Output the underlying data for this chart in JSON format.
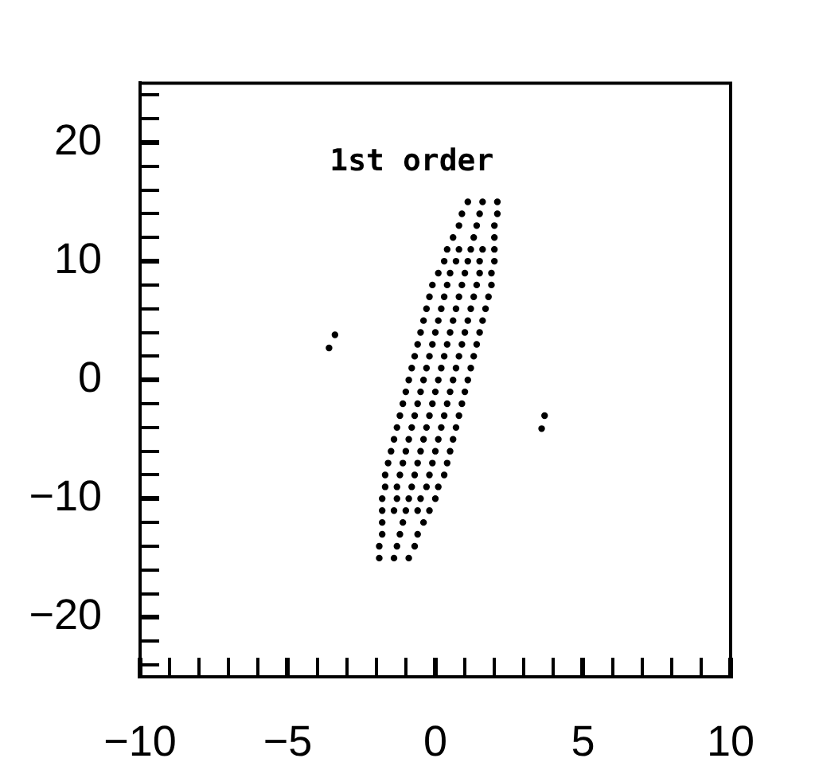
{
  "chart_data": {
    "type": "scatter",
    "annotations": [
      "1st order"
    ],
    "x": [
      1.1,
      1.6,
      2.1,
      0.9,
      1.5,
      2.1,
      0.8,
      1.4,
      2.0,
      0.6,
      1.3,
      2.0,
      0.4,
      0.8,
      1.2,
      1.6,
      2.0,
      0.3,
      0.7,
      1.1,
      1.5,
      2.0,
      0.1,
      0.5,
      1.0,
      1.5,
      1.9,
      -0.1,
      0.4,
      0.9,
      1.4,
      1.9,
      -0.2,
      0.3,
      0.8,
      1.3,
      1.8,
      -0.3,
      0.2,
      0.7,
      1.2,
      1.7,
      -0.4,
      0.1,
      0.6,
      1.1,
      1.6,
      -0.5,
      0,
      0.5,
      1,
      1.5,
      -0.6,
      -0.1,
      0.4,
      0.9,
      1.4,
      -0.7,
      -0.2,
      0.3,
      0.8,
      1.3,
      -0.8,
      -0.3,
      0.2,
      0.7,
      1.2,
      -0.9,
      -0.4,
      0.1,
      0.6,
      1.1,
      -1,
      -0.5,
      0,
      0.5,
      1,
      -1.1,
      -0.6,
      -0.1,
      0.4,
      0.9,
      -1.2,
      -0.7,
      -0.2,
      0.3,
      0.8,
      -1.3,
      -0.8,
      -0.3,
      0.2,
      0.7,
      -1.4,
      -0.9,
      -0.4,
      0.1,
      0.6,
      -1.5,
      -1,
      -0.5,
      0,
      0.5,
      -1.6,
      -1.1,
      -0.6,
      -0.1,
      0.4,
      -1.7,
      -1.2,
      -0.7,
      -0.2,
      0.3,
      -1.7,
      -1.3,
      -0.8,
      -0.3,
      0.1,
      -1.8,
      -1.3,
      -0.9,
      -0.5,
      0.0,
      -1.8,
      -1.4,
      -1.0,
      -0.6,
      -0.2,
      -1.8,
      -1.1,
      -0.4,
      -1.8,
      -1.2,
      -0.6,
      -1.9,
      -1.3,
      -0.7,
      -1.9,
      -1.4,
      -0.9,
      -3.4,
      -3.6,
      3.7,
      3.6
    ],
    "values": [
      15,
      15,
      15,
      14,
      14,
      14,
      13,
      13,
      13,
      12,
      12,
      12,
      11,
      11,
      11,
      11,
      11,
      10,
      10,
      10,
      10,
      10,
      9,
      9,
      9,
      9,
      9,
      8,
      8,
      8,
      8,
      8,
      7,
      7,
      7,
      7,
      7,
      6,
      6,
      6,
      6,
      6,
      5,
      5,
      5,
      5,
      5,
      4,
      4,
      4,
      4,
      4,
      3,
      3,
      3,
      3,
      3,
      2,
      2,
      2,
      2,
      2,
      1,
      1,
      1,
      1,
      1,
      0,
      0,
      0,
      0,
      0,
      -1,
      -1,
      -1,
      -1,
      -1,
      -2,
      -2,
      -2,
      -2,
      -2,
      -3,
      -3,
      -3,
      -3,
      -3,
      -4,
      -4,
      -4,
      -4,
      -4,
      -5,
      -5,
      -5,
      -5,
      -5,
      -6,
      -6,
      -6,
      -6,
      -6,
      -7,
      -7,
      -7,
      -7,
      -7,
      -8,
      -8,
      -8,
      -8,
      -8,
      -9,
      -9,
      -9,
      -9,
      -9,
      -10,
      -10,
      -10,
      -10,
      -10,
      -11,
      -11,
      -11,
      -11,
      -11,
      -12,
      -12,
      -12,
      -13,
      -13,
      -13,
      -14,
      -14,
      -14,
      -15,
      -15,
      -15,
      3.8,
      2.7,
      -3.0,
      -4.1
    ],
    "color": "#000000",
    "marker": "circle",
    "xlim": [
      -10,
      10
    ],
    "xticks": [
      {
        "value": -10,
        "label": "−10"
      },
      {
        "value": -9,
        "label": null
      },
      {
        "value": -8,
        "label": null
      },
      {
        "value": -7,
        "label": null
      },
      {
        "value": -6,
        "label": null
      },
      {
        "value": -5,
        "label": "−5"
      },
      {
        "value": -4,
        "label": null
      },
      {
        "value": -3,
        "label": null
      },
      {
        "value": -2,
        "label": null
      },
      {
        "value": -1,
        "label": null
      },
      0,
      {
        "value": 1,
        "label": null
      },
      {
        "value": 2,
        "label": null
      },
      {
        "value": 3,
        "label": null
      },
      {
        "value": 4,
        "label": null
      },
      5,
      {
        "value": 6,
        "label": null
      },
      {
        "value": 7,
        "label": null
      },
      {
        "value": 8,
        "label": null
      },
      {
        "value": 9,
        "label": null
      },
      10
    ],
    "ylim": [
      -25,
      25
    ],
    "yticks": [
      {
        "value": -24,
        "label": null
      },
      {
        "value": -22,
        "label": null
      },
      {
        "value": -20,
        "label": "−20"
      },
      {
        "value": -18,
        "label": null
      },
      {
        "value": -16,
        "label": null
      },
      {
        "value": -14,
        "label": null
      },
      {
        "value": -12,
        "label": null
      },
      {
        "value": -10,
        "label": "−10"
      },
      {
        "value": -8,
        "label": null
      },
      {
        "value": -6,
        "label": null
      },
      {
        "value": -4,
        "label": null
      },
      {
        "value": -2,
        "label": null
      },
      0,
      {
        "value": 2,
        "label": null
      },
      {
        "value": 4,
        "label": null
      },
      {
        "value": 6,
        "label": null
      },
      {
        "value": 8,
        "label": null
      },
      10,
      {
        "value": 12,
        "label": null
      },
      {
        "value": 14,
        "label": null
      },
      {
        "value": 16,
        "label": null
      },
      {
        "value": 18,
        "label": null
      },
      20,
      {
        "value": 22,
        "label": null
      },
      {
        "value": 24,
        "label": null
      }
    ],
    "grid": false,
    "legend": false
  }
}
